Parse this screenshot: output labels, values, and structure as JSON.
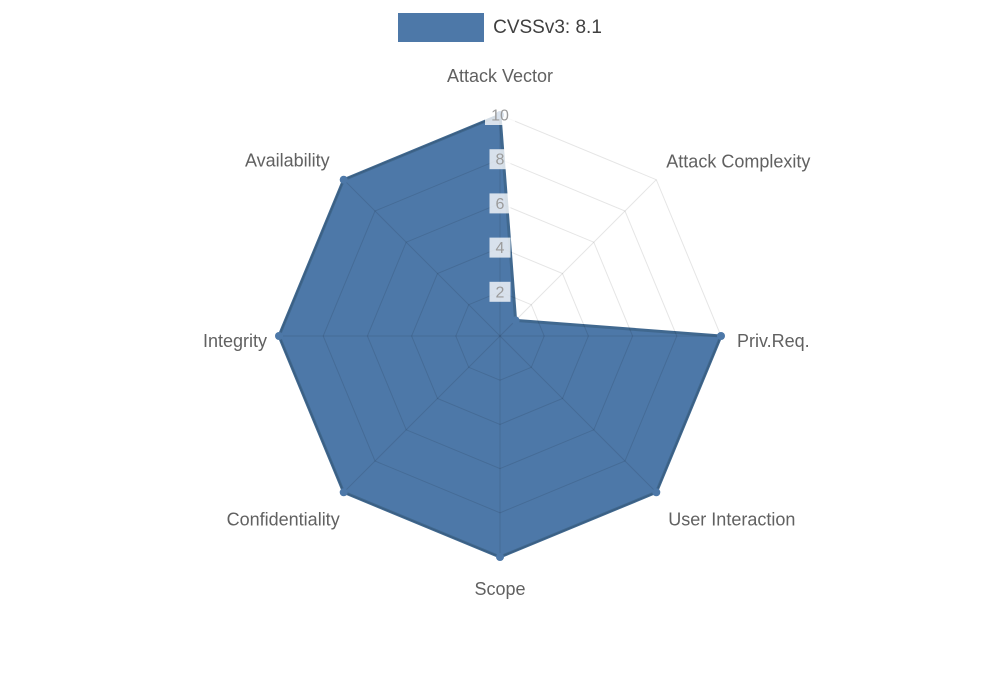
{
  "legend": {
    "label": "CVSSv3: 8.1",
    "swatch_color": "#4d78a8"
  },
  "chart_data": {
    "type": "radar",
    "title": "CVSSv3: 8.1",
    "categories": [
      "Attack Vector",
      "Attack Complexity",
      "Priv.Req.",
      "User Interaction",
      "Scope",
      "Confidentiality",
      "Integrity",
      "Availability"
    ],
    "series": [
      {
        "name": "CVSSv3: 8.1",
        "values": [
          10,
          1,
          10,
          10,
          10,
          10,
          10,
          10
        ]
      }
    ],
    "r_axis": {
      "min": 0,
      "max": 10,
      "ticks": [
        2,
        4,
        6,
        8,
        10
      ]
    },
    "grid": "polygon",
    "legend_position": "top",
    "colors": {
      "fill": "#4d78a8",
      "stroke": "#40688f",
      "grid_line": "rgba(0,0,0,0.10)",
      "tick_text": "#9b9b9b",
      "tick_backdrop": "rgba(255,255,255,0.78)",
      "point_label": "#616161"
    }
  }
}
